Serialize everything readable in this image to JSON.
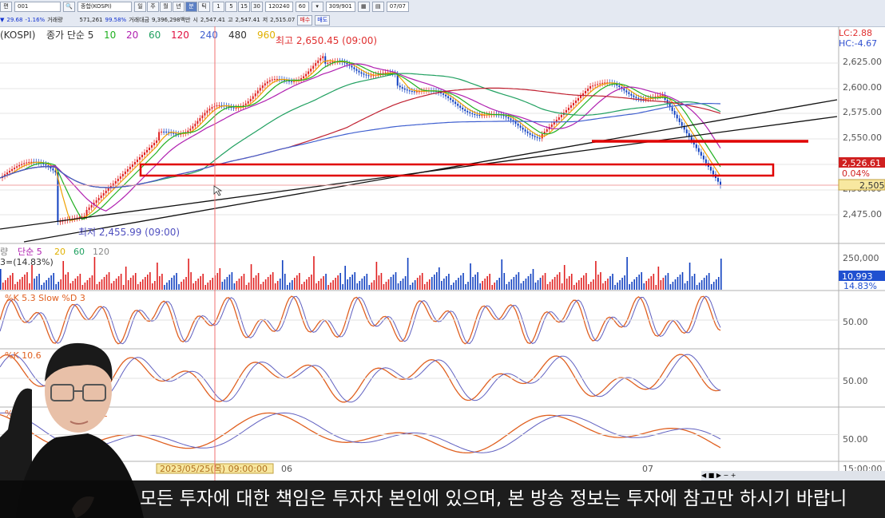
{
  "toolbar": {
    "row1": {
      "account": "001",
      "symbol_label": "종합(KOSPI)",
      "period_buttons": [
        "일",
        "주",
        "월",
        "년",
        "분",
        "틱"
      ],
      "selected_period": "분",
      "interval_buttons": [
        "1",
        "5",
        "15",
        "30"
      ],
      "date_field": "120240",
      "unit": "60",
      "count": "309/901",
      "date_right": "07/07"
    },
    "row2": {
      "change": "29.68",
      "change_pct": "-1.16%",
      "volume_label": "거래량",
      "volume": "571,261",
      "ratio": "99.58%",
      "amount_label": "거래대금",
      "amount": "9,396,298백만",
      "open_label": "시",
      "open": "2,547.41",
      "high_label": "고",
      "high": "2,547.41",
      "low_label": "저",
      "low": "2,515.07",
      "buy_label": "매수",
      "sell_label": "매도"
    }
  },
  "price_panel": {
    "legend_symbol": "(KOSPI)",
    "legend_type": "종가 단순 5",
    "ma_labels": [
      {
        "label": "10",
        "color": "#20b020"
      },
      {
        "label": "20",
        "color": "#b020b0"
      },
      {
        "label": "60",
        "color": "#20a060"
      },
      {
        "label": "120",
        "color": "#e01040"
      },
      {
        "label": "240",
        "color": "#4060d0"
      },
      {
        "label": "480",
        "color": "#303030"
      },
      {
        "label": "960",
        "color": "#e0b000"
      }
    ],
    "high_annotation": "최고 2,650.45 (09:00)",
    "low_annotation": "최저 2,455.99 (09:00)",
    "lc": "LC:2.88",
    "hc": "HC:-4.67",
    "y_ticks": [
      "2,625.00",
      "2,600.00",
      "2,575.00",
      "2,550.00",
      "2,500.00",
      "2,475.00"
    ],
    "current_price": "2,526.61",
    "current_pct": "0.04%",
    "right_value": "2,505"
  },
  "volume_panel": {
    "legend_prefix": "량",
    "legend_type": "단순 5",
    "ma_labels": [
      {
        "label": "20",
        "color": "#e0b000"
      },
      {
        "label": "60",
        "color": "#20a060"
      },
      {
        "label": "120",
        "color": "#888888"
      }
    ],
    "sub_legend": "3=(14.83%)",
    "y_tick": "250,000",
    "current_value": "10,993",
    "current_pct": "14.83%"
  },
  "stoch1": {
    "legend": "%K 5.3  Slow %D 3",
    "y_tick": "50.00"
  },
  "stoch2": {
    "legend": "%K 10.6",
    "y_tick": "50.00"
  },
  "stoch3": {
    "legend": "%K",
    "legend_tail": "2",
    "y_tick": "50.00"
  },
  "time_axis": {
    "cursor_label": "2023/05/25(목) 09:00:00",
    "labels": [
      "06",
      "07"
    ],
    "right_label": "15:00:00"
  },
  "subtitle": "모든 투자에 대한 책임은 투자자 본인에 있으며, 본 방송 정보는 투자에 참고만 하시기 바랍니",
  "colors": {
    "candle_up": "#e02020",
    "candle_down": "#1040c0",
    "highlight_red": "#e00000",
    "stoch_fill": "#f08040",
    "stoch_fill_down": "#40a0e0"
  }
}
